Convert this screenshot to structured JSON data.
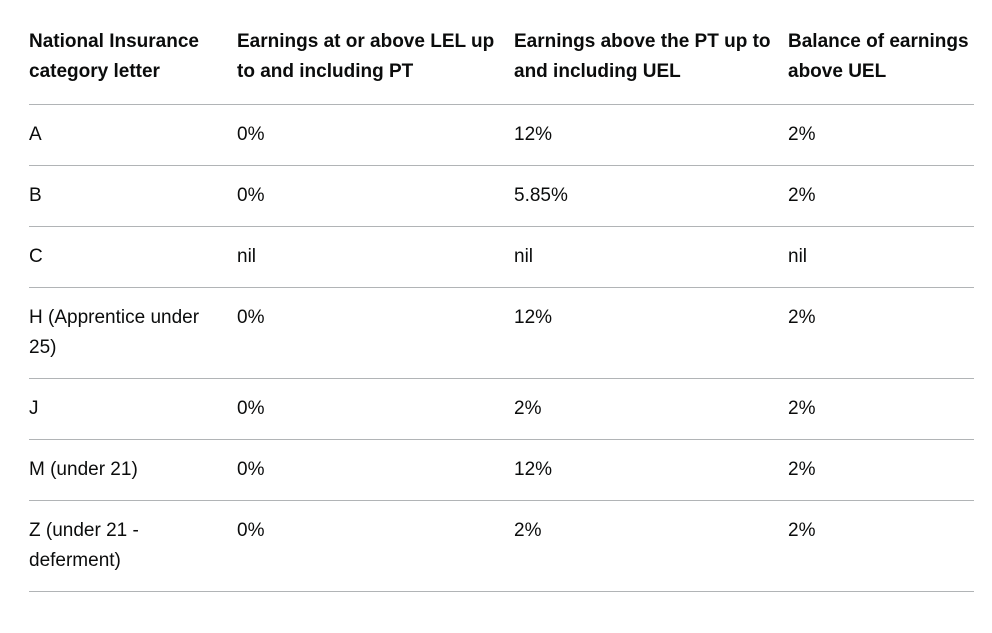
{
  "table": {
    "headers": [
      "National Insurance category letter",
      "Earnings at or above LEL up to and including PT",
      "Earnings above the PT up to and including UEL",
      "Balance of earnings above UEL"
    ],
    "rows": [
      [
        "A",
        "0%",
        "12%",
        "2%"
      ],
      [
        "B",
        "0%",
        "5.85%",
        "2%"
      ],
      [
        "C",
        "nil",
        "nil",
        "nil"
      ],
      [
        "H (Apprentice under 25)",
        "0%",
        "12%",
        "2%"
      ],
      [
        "J",
        "0%",
        "2%",
        "2%"
      ],
      [
        "M (under 21)",
        "0%",
        "12%",
        "2%"
      ],
      [
        "Z (under 21 - deferment)",
        "0%",
        "2%",
        "2%"
      ]
    ]
  }
}
